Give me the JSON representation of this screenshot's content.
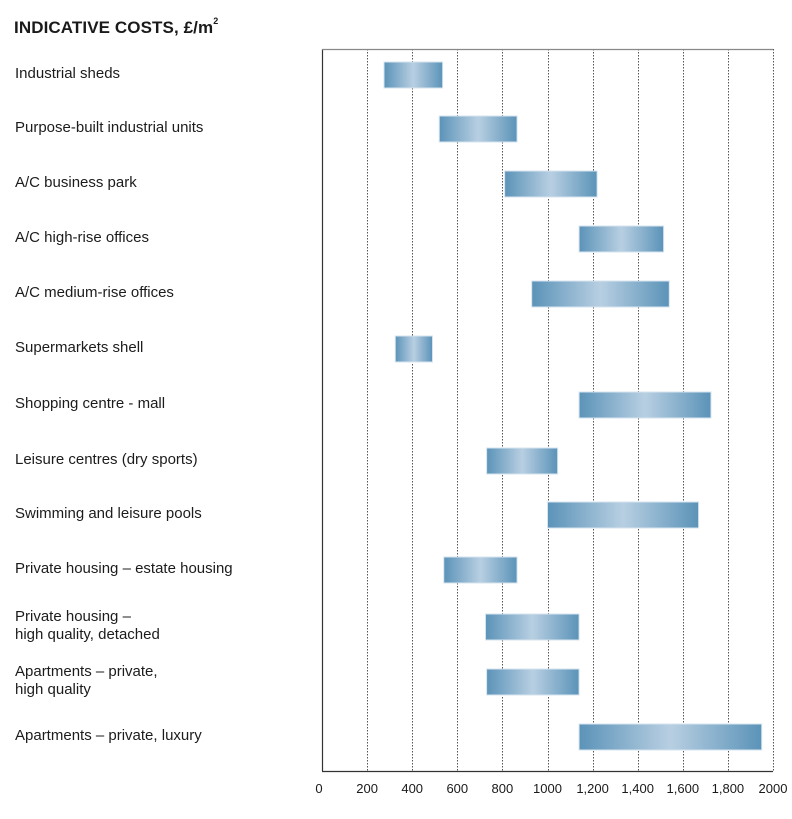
{
  "title": "INDICATIVE COSTS, £/m",
  "title_superscript": "2",
  "chart_data": {
    "type": "bar",
    "orientation": "horizontal",
    "subtype": "floating-range",
    "title": "INDICATIVE COSTS, £/m²",
    "xlabel": "",
    "ylabel": "",
    "xlim": [
      0,
      2000
    ],
    "grid": true,
    "grid_style": "dotted vertical",
    "x_ticks": [
      0,
      200,
      400,
      600,
      800,
      1000,
      1200,
      1400,
      1600,
      1800,
      2000
    ],
    "x_tick_labels": [
      "0",
      "200",
      "400",
      "600",
      "800",
      "1000",
      "1,200",
      "1,400",
      "1,600",
      "1,800",
      "2000"
    ],
    "bar_color_edge": "#5b93b8",
    "bar_color_center": "#b8cfe2",
    "categories": [
      "Industrial sheds",
      "Purpose-built industrial units",
      "A/C business park",
      "A/C high-rise offices",
      "A/C medium-rise offices",
      "Supermarkets shell",
      "Shopping centre - mall",
      "Leisure centres (dry sports)",
      "Swimming and leisure pools",
      "Private housing – estate housing",
      "Private housing –\nhigh quality, detached",
      "Apartments – private,\nhigh quality",
      "Apartments – private, luxury"
    ],
    "ranges": [
      {
        "low": 275,
        "high": 535
      },
      {
        "low": 520,
        "high": 865
      },
      {
        "low": 810,
        "high": 1220
      },
      {
        "low": 1140,
        "high": 1515
      },
      {
        "low": 930,
        "high": 1540
      },
      {
        "low": 325,
        "high": 490
      },
      {
        "low": 1140,
        "high": 1725
      },
      {
        "low": 730,
        "high": 1045
      },
      {
        "low": 1000,
        "high": 1670
      },
      {
        "low": 540,
        "high": 865
      },
      {
        "low": 725,
        "high": 1140
      },
      {
        "low": 730,
        "high": 1140
      },
      {
        "low": 1140,
        "high": 1950
      }
    ]
  }
}
